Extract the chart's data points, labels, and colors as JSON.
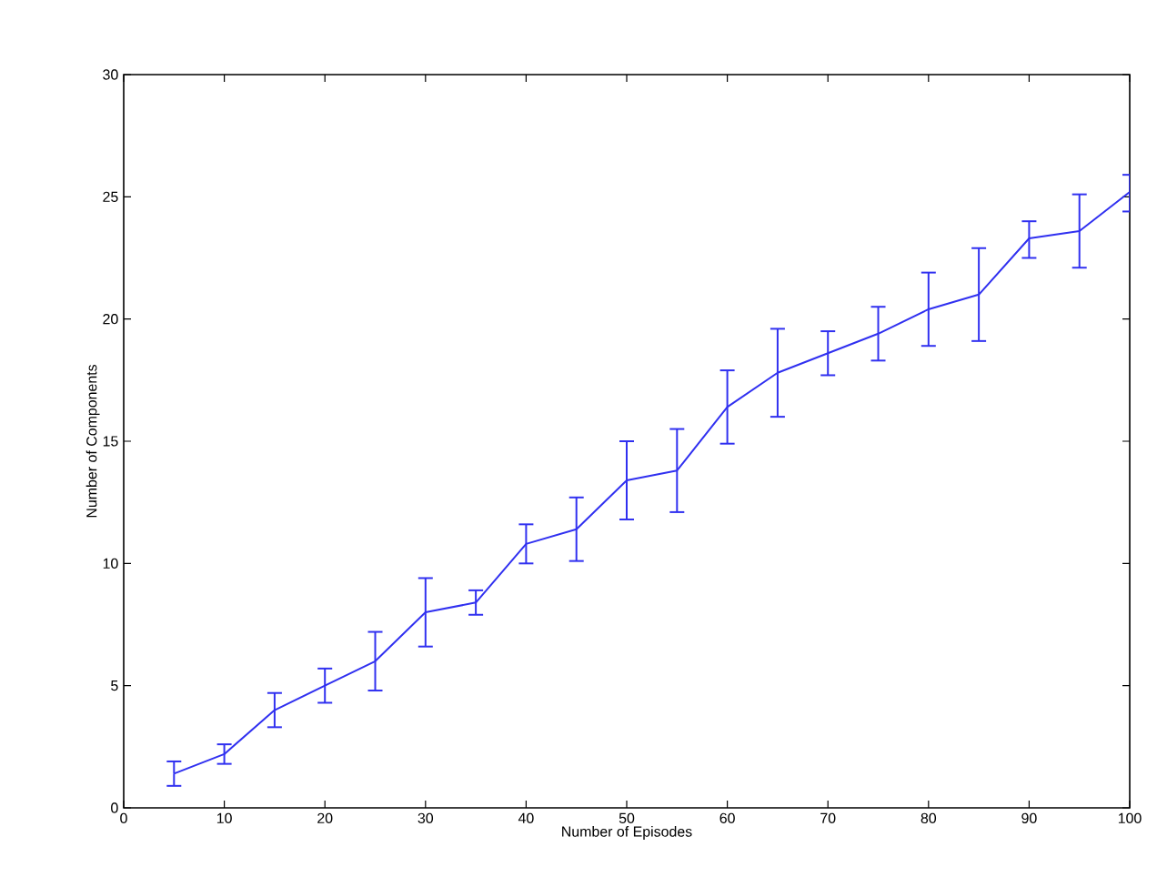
{
  "chart_data": {
    "type": "line",
    "xlabel": "Number of Episodes",
    "ylabel": "Number of Components",
    "x": [
      5,
      10,
      15,
      20,
      25,
      30,
      35,
      40,
      45,
      50,
      55,
      60,
      65,
      70,
      75,
      80,
      85,
      90,
      95,
      100
    ],
    "series": [
      {
        "color": "#3030f0",
        "values": [
          1.4,
          2.2,
          4.0,
          5.0,
          6.0,
          8.0,
          8.4,
          10.8,
          11.4,
          13.4,
          13.8,
          16.4,
          17.8,
          18.6,
          19.4,
          20.4,
          21.0,
          23.3,
          23.6,
          25.2
        ],
        "errors": [
          [
            0.9,
            1.9
          ],
          [
            1.8,
            2.6
          ],
          [
            3.3,
            4.7
          ],
          [
            4.3,
            5.7
          ],
          [
            4.8,
            7.2
          ],
          [
            6.6,
            9.4
          ],
          [
            7.9,
            8.9
          ],
          [
            10.0,
            11.6
          ],
          [
            10.1,
            12.7
          ],
          [
            11.8,
            15.0
          ],
          [
            12.1,
            15.5
          ],
          [
            14.9,
            17.9
          ],
          [
            16.0,
            19.6
          ],
          [
            17.7,
            19.5
          ],
          [
            18.3,
            20.5
          ],
          [
            18.9,
            21.9
          ],
          [
            19.1,
            22.9
          ],
          [
            22.5,
            24.0
          ],
          [
            22.1,
            25.1
          ],
          [
            24.4,
            25.9
          ]
        ]
      }
    ],
    "xlim": [
      0,
      100
    ],
    "xticks": [
      0,
      10,
      20,
      30,
      40,
      50,
      60,
      70,
      80,
      90,
      100
    ],
    "ylim": [
      0,
      30
    ],
    "yticks": [
      0,
      5,
      10,
      15,
      20,
      25,
      30
    ],
    "grid": false,
    "marker": "none",
    "line_style": "solid"
  }
}
